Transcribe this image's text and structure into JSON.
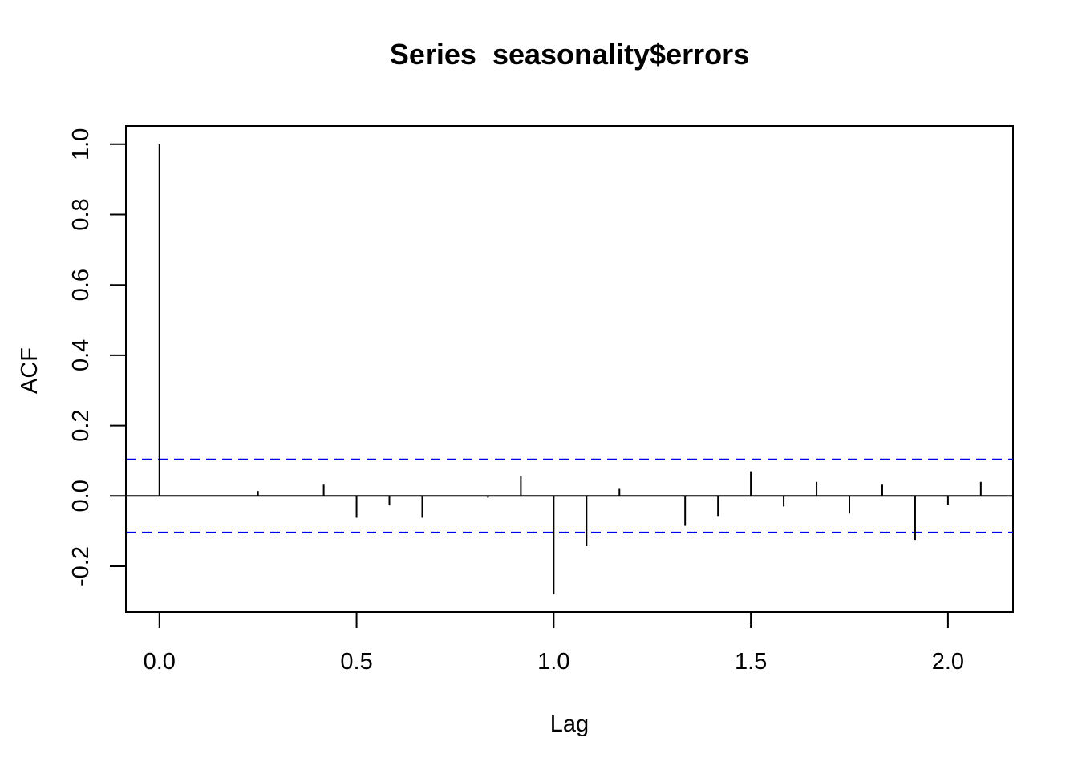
{
  "chart_data": {
    "type": "bar",
    "title": "Series  seasonality$errors",
    "xlabel": "Lag",
    "ylabel": "ACF",
    "xlim": [
      -0.085,
      2.165
    ],
    "ylim": [
      -0.33,
      1.052
    ],
    "x_ticks": [
      0.0,
      0.5,
      1.0,
      1.5,
      2.0
    ],
    "x_tick_labels": [
      "0.0",
      "0.5",
      "1.0",
      "1.5",
      "2.0"
    ],
    "y_ticks": [
      -0.2,
      0.0,
      0.2,
      0.4,
      0.6,
      0.8,
      1.0
    ],
    "y_tick_labels": [
      "-0.2",
      "0.0",
      "0.2",
      "0.4",
      "0.6",
      "0.8",
      "1.0"
    ],
    "confidence_bound": 0.104,
    "confidence_color": "#0000ee",
    "grid": false,
    "lags": [
      0.0,
      0.0833,
      0.1667,
      0.25,
      0.3333,
      0.4167,
      0.5,
      0.5833,
      0.6667,
      0.75,
      0.8333,
      0.9167,
      1.0,
      1.0833,
      1.1667,
      1.25,
      1.3333,
      1.4167,
      1.5,
      1.5833,
      1.6667,
      1.75,
      1.8333,
      1.9167,
      2.0,
      2.0833
    ],
    "values": [
      1.0,
      0.0,
      0.0,
      0.014,
      0.0,
      0.032,
      -0.062,
      -0.027,
      -0.062,
      0.0,
      -0.005,
      0.055,
      -0.28,
      -0.143,
      0.02,
      0.0,
      -0.085,
      -0.057,
      0.07,
      -0.03,
      0.04,
      -0.05,
      0.032,
      -0.125,
      -0.025,
      0.04
    ]
  }
}
